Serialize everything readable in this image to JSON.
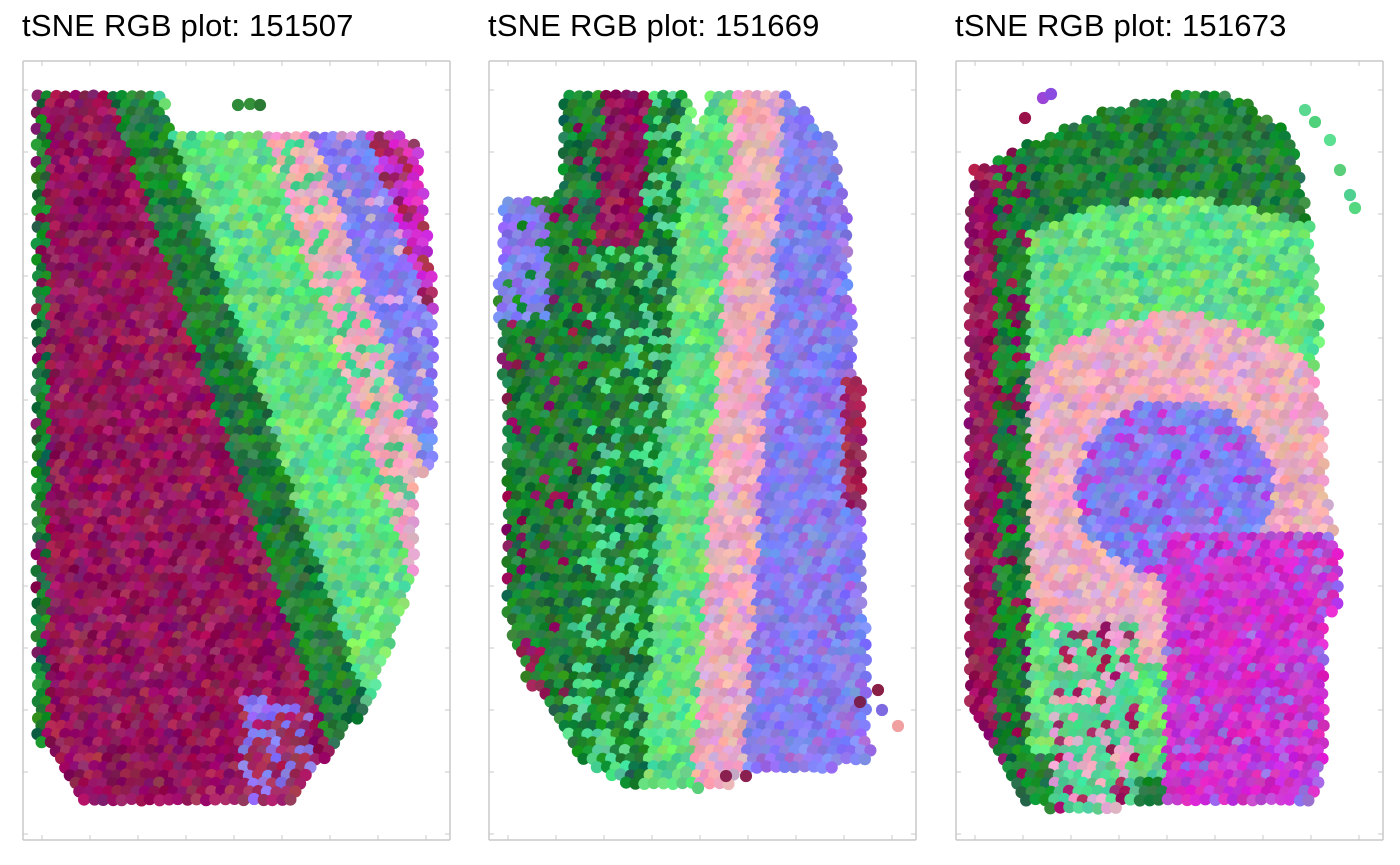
{
  "chart_data": [
    {
      "type": "scatter",
      "title": "tSNE RGB plot: 151507",
      "xlabel": "",
      "ylabel": "",
      "grid": false,
      "legend": "none",
      "colors": {
        "dark_magenta": "#8e0f5a",
        "green": "#1e8a2e",
        "light_green": "#64e07a",
        "pink": "#eaa6c4",
        "violet": "#8a78ee",
        "magenta": "#d62cc8"
      },
      "spots": "colored tSNE-RGB spots"
    },
    {
      "type": "scatter",
      "title": "tSNE RGB plot: 151669",
      "xlabel": "",
      "ylabel": "",
      "grid": false,
      "legend": "none",
      "colors": {
        "dark_magenta": "#8e0f5a",
        "green": "#1e8a2e",
        "light_green": "#64e07a",
        "pink": "#eaa6c4",
        "violet": "#8a78ee"
      },
      "spots": "colored tSNE-RGB spots"
    },
    {
      "type": "scatter",
      "title": "tSNE RGB plot: 151673",
      "xlabel": "",
      "ylabel": "",
      "grid": false,
      "legend": "none",
      "colors": {
        "dark_magenta": "#8e0f5a",
        "green": "#1e8a2e",
        "light_green": "#64e07a",
        "pink": "#eaa6c4",
        "violet": "#8a78ee",
        "magenta": "#d62cc8"
      },
      "spots": "colored tSNE-RGB spots"
    }
  ]
}
